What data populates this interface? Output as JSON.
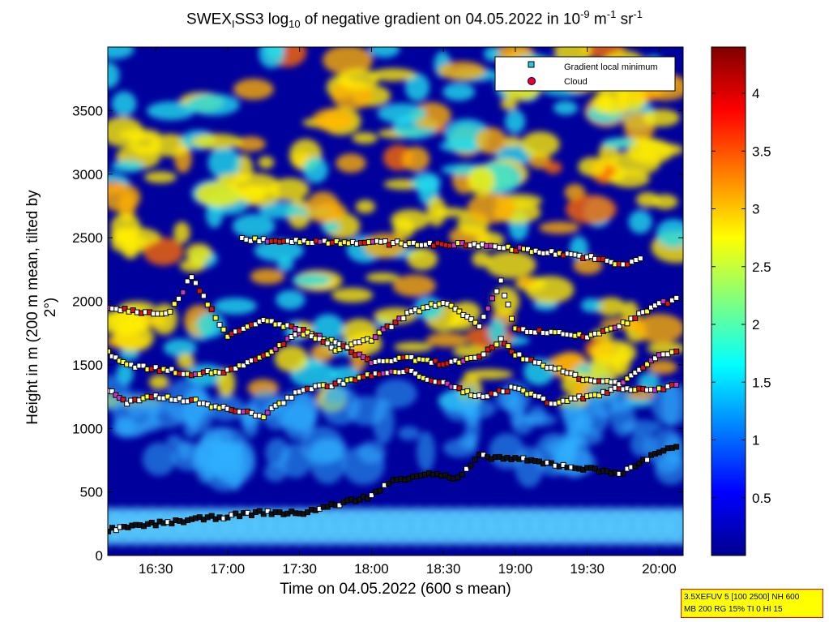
{
  "title": {
    "prefix": "SWEX",
    "sub1": "I",
    "mid": "SS3 log",
    "sub2": "10",
    "rest": " of negative gradient on 04.05.2022 in 10",
    "sup1": "-9",
    "unit1": " m",
    "sup2": "-1",
    "unit2": " sr",
    "sup3": "-1"
  },
  "chart_data": {
    "type": "heatmap",
    "xlabel": "Time on 04.05.2022 (600 s mean)",
    "ylabel": "Height in m (200 m mean, tilted by 2°)",
    "x_range": [
      "16:10",
      "20:10"
    ],
    "ylim": [
      0,
      4000
    ],
    "x_ticks": [
      "16:30",
      "17:00",
      "17:30",
      "18:00",
      "18:30",
      "19:00",
      "19:30",
      "20:00"
    ],
    "y_ticks": [
      0,
      500,
      1000,
      1500,
      2000,
      2500,
      3000,
      3500
    ],
    "colorbar": {
      "range": [
        0,
        4.4
      ],
      "ticks": [
        "0.5",
        "1",
        "1.5",
        "2",
        "2.5",
        "3",
        "3.5",
        "4"
      ],
      "colormap": "jet"
    },
    "legend": {
      "position": "top-right",
      "entries": [
        {
          "label": "Gradient local minimum",
          "marker": "square",
          "color": "#22ccdd"
        },
        {
          "label": "Cloud",
          "marker": "circle",
          "color": "#ff0000"
        }
      ]
    },
    "gradient_minimum_layers": [
      {
        "name": "layer-boundary",
        "points": [
          [
            16.17,
            200
          ],
          [
            16.5,
            250
          ],
          [
            17.0,
            310
          ],
          [
            17.25,
            340
          ],
          [
            17.5,
            330
          ],
          [
            17.75,
            400
          ],
          [
            18.0,
            470
          ],
          [
            18.15,
            590
          ],
          [
            18.4,
            650
          ],
          [
            18.6,
            600
          ],
          [
            18.75,
            780
          ],
          [
            19.0,
            760
          ],
          [
            19.25,
            720
          ],
          [
            19.5,
            680
          ],
          [
            19.75,
            650
          ],
          [
            20.0,
            820
          ],
          [
            20.15,
            870
          ]
        ]
      },
      {
        "name": "layer-low",
        "points": [
          [
            16.17,
            1300
          ],
          [
            16.3,
            1200
          ],
          [
            16.5,
            1250
          ],
          [
            16.75,
            1220
          ],
          [
            17.0,
            1150
          ],
          [
            17.25,
            1100
          ],
          [
            17.5,
            1300
          ],
          [
            17.75,
            1350
          ],
          [
            18.0,
            1420
          ],
          [
            18.25,
            1450
          ],
          [
            18.5,
            1350
          ],
          [
            18.75,
            1250
          ],
          [
            19.0,
            1320
          ],
          [
            19.25,
            1200
          ],
          [
            19.5,
            1250
          ],
          [
            19.75,
            1320
          ],
          [
            20.0,
            1300
          ],
          [
            20.15,
            1370
          ]
        ]
      },
      {
        "name": "layer-mid",
        "points": [
          [
            16.17,
            1600
          ],
          [
            16.3,
            1500
          ],
          [
            16.5,
            1470
          ],
          [
            16.75,
            1430
          ],
          [
            17.0,
            1450
          ],
          [
            17.25,
            1560
          ],
          [
            17.5,
            1760
          ],
          [
            17.75,
            1680
          ],
          [
            18.0,
            1520
          ],
          [
            18.25,
            1550
          ],
          [
            18.5,
            1510
          ],
          [
            18.75,
            1550
          ],
          [
            18.9,
            1700
          ],
          [
            19.0,
            1580
          ],
          [
            19.25,
            1480
          ],
          [
            19.5,
            1380
          ],
          [
            19.75,
            1360
          ],
          [
            20.0,
            1580
          ],
          [
            20.15,
            1620
          ]
        ]
      },
      {
        "name": "layer-upper",
        "points": [
          [
            16.17,
            1950
          ],
          [
            16.4,
            1920
          ],
          [
            16.6,
            1910
          ],
          [
            16.75,
            2200
          ],
          [
            17.0,
            1720
          ],
          [
            17.25,
            1850
          ],
          [
            17.5,
            1780
          ],
          [
            17.75,
            1620
          ],
          [
            18.0,
            1700
          ],
          [
            18.25,
            1900
          ],
          [
            18.5,
            2000
          ],
          [
            18.75,
            1800
          ],
          [
            18.9,
            2150
          ],
          [
            19.0,
            1780
          ],
          [
            19.25,
            1750
          ],
          [
            19.5,
            1720
          ],
          [
            19.75,
            1820
          ],
          [
            20.0,
            1980
          ],
          [
            20.15,
            2020
          ]
        ]
      },
      {
        "name": "layer-top",
        "points": [
          [
            17.1,
            2490
          ],
          [
            17.25,
            2480
          ],
          [
            18.8,
            2440
          ],
          [
            18.95,
            2420
          ],
          [
            19.5,
            2350
          ],
          [
            19.75,
            2280
          ],
          [
            19.9,
            2360
          ]
        ]
      }
    ]
  },
  "info_box": {
    "line1": "3.5XEFUV 5 [100 2500] NH 600",
    "line2": "MB 200 RG 15% TI 0 HI 15"
  }
}
